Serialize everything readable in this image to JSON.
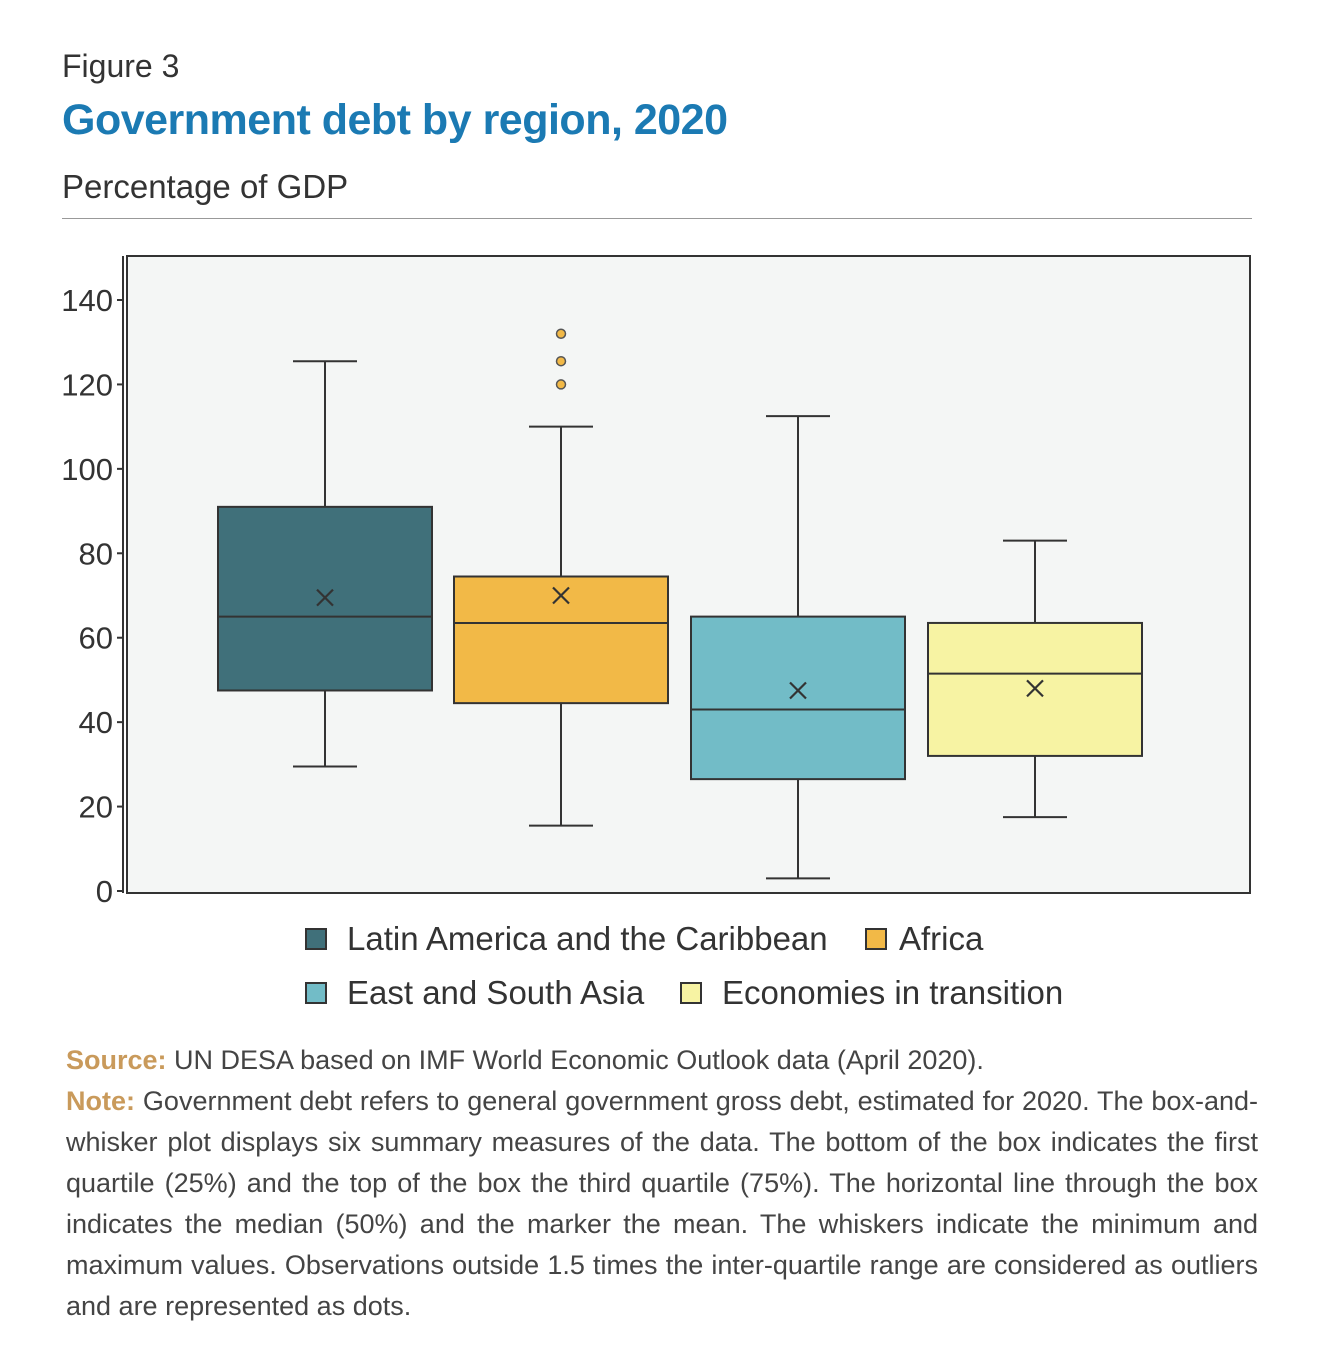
{
  "figure": {
    "label": "Figure 3",
    "title": "Government debt by region, 2020",
    "subtitle": "Percentage of GDP"
  },
  "chart_data": {
    "type": "box",
    "title": "Government debt by region, 2020",
    "ylabel": "Percentage of GDP",
    "ylim": [
      0,
      150
    ],
    "yticks": [
      0,
      20,
      40,
      60,
      80,
      100,
      120,
      140
    ],
    "ytick_labels": [
      "0",
      "20",
      "40",
      "60",
      "80",
      "100",
      "120",
      "140"
    ],
    "grid": false,
    "legend_position": "bottom",
    "series": [
      {
        "name": "Latin America and the Caribbean",
        "color": "#40707a",
        "min": 29.5,
        "q1": 47.5,
        "median": 65,
        "q3": 91,
        "max": 125.5,
        "mean": 69.5,
        "outliers": []
      },
      {
        "name": "Africa",
        "color": "#f2b947",
        "min": 15.5,
        "q1": 44.5,
        "median": 63.5,
        "q3": 74.5,
        "max": 110,
        "mean": 70,
        "outliers": [
          120,
          125.5,
          132
        ]
      },
      {
        "name": "East and South Asia",
        "color": "#72bcc7",
        "min": 3,
        "q1": 26.5,
        "median": 43,
        "q3": 65,
        "max": 112.5,
        "mean": 47.5,
        "outliers": []
      },
      {
        "name": "Economies in transition",
        "color": "#f7f3a3",
        "min": 17.5,
        "q1": 32,
        "median": 51.5,
        "q3": 63.5,
        "max": 83,
        "mean": 48,
        "outliers": []
      }
    ]
  },
  "notes": {
    "source_label": "Source:",
    "source_text": "UN DESA based on IMF World Economic Outlook data (April 2020).",
    "note_label": "Note:",
    "note_text": "Government debt refers to general government gross debt,  estimated for 2020. The box-and-whisker plot displays six summary measures of the data. The bottom of the box indicates the first quartile (25%) and the top of the box the third quartile (75%). The horizontal line through the box indicates the median (50%) and the marker the mean. The whiskers indicate the minimum and maximum values. Observations outside 1.5 times the inter-quartile range are considered as outliers and are represented as dots."
  }
}
